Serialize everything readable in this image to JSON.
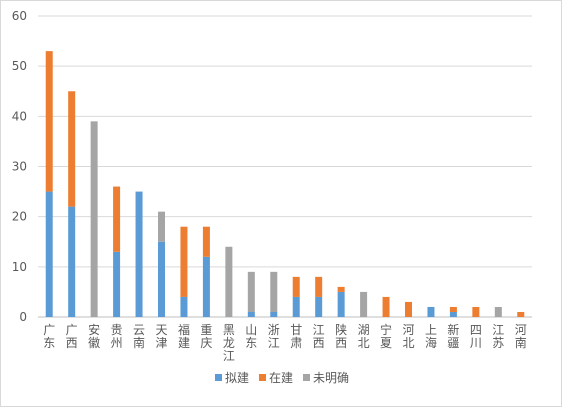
{
  "chart_data": {
    "type": "bar",
    "stacked": true,
    "title": "",
    "xlabel": "",
    "ylabel": "",
    "ylim": [
      0,
      60
    ],
    "yticks": [
      0,
      10,
      20,
      30,
      40,
      50,
      60
    ],
    "grid": true,
    "legend_position": "bottom",
    "categories": [
      "广东",
      "广西",
      "安徽",
      "贵州",
      "云南",
      "天津",
      "福建",
      "重庆",
      "黑龙江",
      "山东",
      "浙江",
      "甘肃",
      "江西",
      "陕西",
      "湖北",
      "宁夏",
      "河北",
      "上海",
      "新疆",
      "四川",
      "江苏",
      "河南"
    ],
    "series": [
      {
        "name": "拟建",
        "color": "#5b9bd5",
        "values": [
          25,
          22,
          0,
          13,
          25,
          15,
          4,
          12,
          0,
          1,
          1,
          4,
          4,
          5,
          0,
          0,
          0,
          2,
          1,
          0,
          0,
          0
        ]
      },
      {
        "name": "在建",
        "color": "#ed7d31",
        "values": [
          28,
          23,
          0,
          13,
          0,
          0,
          14,
          6,
          0,
          0,
          0,
          4,
          4,
          1,
          0,
          4,
          3,
          0,
          1,
          2,
          0,
          1
        ]
      },
      {
        "name": "未明确",
        "color": "#a5a5a5",
        "values": [
          0,
          0,
          39,
          0,
          0,
          6,
          0,
          0,
          14,
          8,
          8,
          0,
          0,
          0,
          5,
          0,
          0,
          0,
          0,
          0,
          2,
          0
        ]
      }
    ]
  }
}
